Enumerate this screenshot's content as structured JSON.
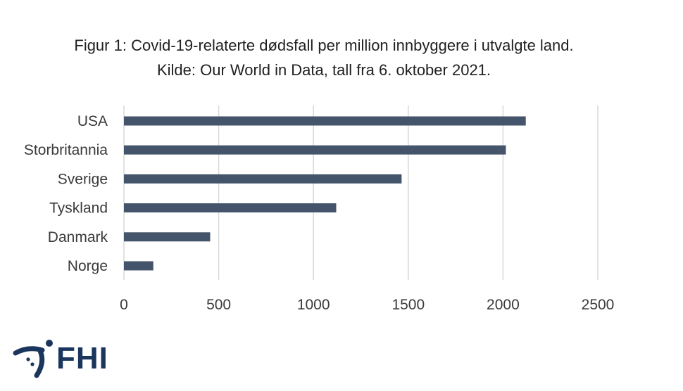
{
  "chart_data": {
    "type": "bar",
    "orientation": "horizontal",
    "title": "Figur 1: Covid-19-relaterte dødsfall per million innbyggere i utvalgte land.",
    "subtitle": "Kilde: Our World in Data, tall fra 6. oktober 2021.",
    "categories": [
      "USA",
      "Storbritannia",
      "Sverige",
      "Tyskland",
      "Danmark",
      "Norge"
    ],
    "values": [
      2120,
      2015,
      1465,
      1120,
      455,
      155
    ],
    "xlim": [
      0,
      2500
    ],
    "xticks": [
      0,
      500,
      1000,
      1500,
      2000,
      2500
    ],
    "xlabel": "",
    "ylabel": "",
    "grid": "vertical",
    "legend": "none",
    "bar_color": "#44546a",
    "grid_color": "#d9d9d9"
  },
  "logo": {
    "text": "FHI",
    "color": "#1b365d"
  }
}
